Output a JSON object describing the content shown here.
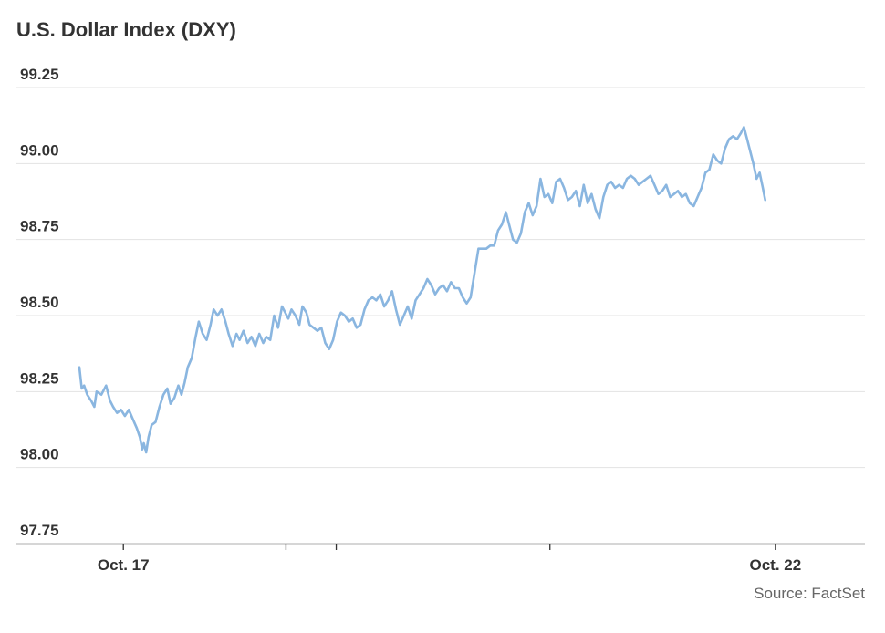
{
  "chart_data": {
    "type": "line",
    "title": "U.S. Dollar Index (DXY)",
    "source": "Source: FactSet",
    "xlabel": "",
    "ylabel": "",
    "ylim": [
      97.75,
      99.25
    ],
    "yticks": [
      97.75,
      98.0,
      98.25,
      98.5,
      98.75,
      99.0,
      99.25
    ],
    "ytick_labels": [
      "97.75",
      "98.00",
      "98.25",
      "98.50",
      "98.75",
      "99.00",
      "99.25"
    ],
    "xlim": [
      0,
      100
    ],
    "xticks": [
      {
        "x": 5.6,
        "label": "Oct. 17"
      },
      {
        "x": 26.3,
        "label": ""
      },
      {
        "x": 32.7,
        "label": ""
      },
      {
        "x": 59.9,
        "label": ""
      },
      {
        "x": 88.6,
        "label": "Oct. 22"
      }
    ],
    "grid": true,
    "color": "#8ab6e0",
    "series": [
      {
        "name": "",
        "points": [
          [
            0,
            98.33
          ],
          [
            0.3,
            98.26
          ],
          [
            0.6,
            98.27
          ],
          [
            1.0,
            98.24
          ],
          [
            1.5,
            98.22
          ],
          [
            1.9,
            98.2
          ],
          [
            2.2,
            98.25
          ],
          [
            2.8,
            98.24
          ],
          [
            3.4,
            98.27
          ],
          [
            3.9,
            98.22
          ],
          [
            4.3,
            98.2
          ],
          [
            4.8,
            98.18
          ],
          [
            5.3,
            98.19
          ],
          [
            5.8,
            98.17
          ],
          [
            6.3,
            98.19
          ],
          [
            6.8,
            98.16
          ],
          [
            7.3,
            98.13
          ],
          [
            7.7,
            98.1
          ],
          [
            8.0,
            98.06
          ],
          [
            8.2,
            98.08
          ],
          [
            8.5,
            98.05
          ],
          [
            8.8,
            98.1
          ],
          [
            9.2,
            98.14
          ],
          [
            9.7,
            98.15
          ],
          [
            10.2,
            98.2
          ],
          [
            10.7,
            98.24
          ],
          [
            11.2,
            98.26
          ],
          [
            11.6,
            98.21
          ],
          [
            12.1,
            98.23
          ],
          [
            12.6,
            98.27
          ],
          [
            13.0,
            98.24
          ],
          [
            13.4,
            98.28
          ],
          [
            13.8,
            98.33
          ],
          [
            14.3,
            98.36
          ],
          [
            14.8,
            98.43
          ],
          [
            15.2,
            98.48
          ],
          [
            15.7,
            98.44
          ],
          [
            16.2,
            98.42
          ],
          [
            16.7,
            98.47
          ],
          [
            17.1,
            98.52
          ],
          [
            17.6,
            98.5
          ],
          [
            18.1,
            98.52
          ],
          [
            18.6,
            98.48
          ],
          [
            19.0,
            98.44
          ],
          [
            19.5,
            98.4
          ],
          [
            20.0,
            98.44
          ],
          [
            20.4,
            98.42
          ],
          [
            20.9,
            98.45
          ],
          [
            21.4,
            98.41
          ],
          [
            21.9,
            98.43
          ],
          [
            22.4,
            98.4
          ],
          [
            22.9,
            98.44
          ],
          [
            23.4,
            98.41
          ],
          [
            23.8,
            98.43
          ],
          [
            24.3,
            98.42
          ],
          [
            24.8,
            98.5
          ],
          [
            25.3,
            98.46
          ],
          [
            25.8,
            98.53
          ],
          [
            26.2,
            98.51
          ],
          [
            26.6,
            98.49
          ],
          [
            27.0,
            98.52
          ],
          [
            27.5,
            98.5
          ],
          [
            28.0,
            98.47
          ],
          [
            28.4,
            98.53
          ],
          [
            28.9,
            98.51
          ],
          [
            29.3,
            98.47
          ],
          [
            29.8,
            98.46
          ],
          [
            30.3,
            98.45
          ],
          [
            30.8,
            98.46
          ],
          [
            31.3,
            98.41
          ],
          [
            31.8,
            98.39
          ],
          [
            32.3,
            98.42
          ],
          [
            32.8,
            98.48
          ],
          [
            33.3,
            98.51
          ],
          [
            33.8,
            98.5
          ],
          [
            34.3,
            98.48
          ],
          [
            34.8,
            98.49
          ],
          [
            35.3,
            98.46
          ],
          [
            35.8,
            98.47
          ],
          [
            36.3,
            98.52
          ],
          [
            36.8,
            98.55
          ],
          [
            37.3,
            98.56
          ],
          [
            37.8,
            98.55
          ],
          [
            38.3,
            98.57
          ],
          [
            38.8,
            98.53
          ],
          [
            39.3,
            98.55
          ],
          [
            39.8,
            98.58
          ],
          [
            40.3,
            98.52
          ],
          [
            40.8,
            98.47
          ],
          [
            41.3,
            98.5
          ],
          [
            41.8,
            98.53
          ],
          [
            42.3,
            98.49
          ],
          [
            42.8,
            98.55
          ],
          [
            43.3,
            98.57
          ],
          [
            43.8,
            98.59
          ],
          [
            44.3,
            98.62
          ],
          [
            44.8,
            98.6
          ],
          [
            45.3,
            98.57
          ],
          [
            45.8,
            98.59
          ],
          [
            46.3,
            98.6
          ],
          [
            46.8,
            98.58
          ],
          [
            47.3,
            98.61
          ],
          [
            47.8,
            98.59
          ],
          [
            48.3,
            98.59
          ],
          [
            48.8,
            98.56
          ],
          [
            49.3,
            98.54
          ],
          [
            49.8,
            98.56
          ],
          [
            50.3,
            98.64
          ],
          [
            50.8,
            98.72
          ],
          [
            51.3,
            98.72
          ],
          [
            51.8,
            98.72
          ],
          [
            52.3,
            98.73
          ],
          [
            52.8,
            98.73
          ],
          [
            53.3,
            98.78
          ],
          [
            53.8,
            98.8
          ],
          [
            54.3,
            98.84
          ],
          [
            54.8,
            98.79
          ],
          [
            55.2,
            98.75
          ],
          [
            55.7,
            98.74
          ],
          [
            56.2,
            98.77
          ],
          [
            56.7,
            98.84
          ],
          [
            57.2,
            98.87
          ],
          [
            57.7,
            98.83
          ],
          [
            58.2,
            98.86
          ],
          [
            58.7,
            98.95
          ],
          [
            59.2,
            98.89
          ],
          [
            59.7,
            98.9
          ],
          [
            60.2,
            98.87
          ],
          [
            60.7,
            98.94
          ],
          [
            61.2,
            98.95
          ],
          [
            61.7,
            98.92
          ],
          [
            62.2,
            98.88
          ],
          [
            62.7,
            98.89
          ],
          [
            63.2,
            98.91
          ],
          [
            63.7,
            98.86
          ],
          [
            64.2,
            98.93
          ],
          [
            64.7,
            98.87
          ],
          [
            65.2,
            98.9
          ],
          [
            65.7,
            98.85
          ],
          [
            66.2,
            98.82
          ],
          [
            66.7,
            98.89
          ],
          [
            67.2,
            98.93
          ],
          [
            67.7,
            98.94
          ],
          [
            68.2,
            98.92
          ],
          [
            68.7,
            98.93
          ],
          [
            69.2,
            98.92
          ],
          [
            69.7,
            98.95
          ],
          [
            70.2,
            98.96
          ],
          [
            70.7,
            98.95
          ],
          [
            71.2,
            98.93
          ],
          [
            71.7,
            98.94
          ],
          [
            72.2,
            98.95
          ],
          [
            72.7,
            98.96
          ],
          [
            73.2,
            98.93
          ],
          [
            73.7,
            98.9
          ],
          [
            74.2,
            98.91
          ],
          [
            74.7,
            98.93
          ],
          [
            75.2,
            98.89
          ],
          [
            75.7,
            98.9
          ],
          [
            76.2,
            98.91
          ],
          [
            76.7,
            98.89
          ],
          [
            77.2,
            98.9
          ],
          [
            77.7,
            98.87
          ],
          [
            78.2,
            98.86
          ],
          [
            78.7,
            98.89
          ],
          [
            79.2,
            98.92
          ],
          [
            79.7,
            98.97
          ],
          [
            80.2,
            98.98
          ],
          [
            80.7,
            99.03
          ],
          [
            81.2,
            99.01
          ],
          [
            81.7,
            99.0
          ],
          [
            82.2,
            99.05
          ],
          [
            82.7,
            99.08
          ],
          [
            83.2,
            99.09
          ],
          [
            83.7,
            99.08
          ],
          [
            84.2,
            99.1
          ],
          [
            84.6,
            99.12
          ],
          [
            85.0,
            99.08
          ],
          [
            85.4,
            99.04
          ],
          [
            85.8,
            99.0
          ],
          [
            86.2,
            98.95
          ],
          [
            86.6,
            98.97
          ],
          [
            87.0,
            98.92
          ],
          [
            87.3,
            98.88
          ]
        ]
      }
    ]
  }
}
